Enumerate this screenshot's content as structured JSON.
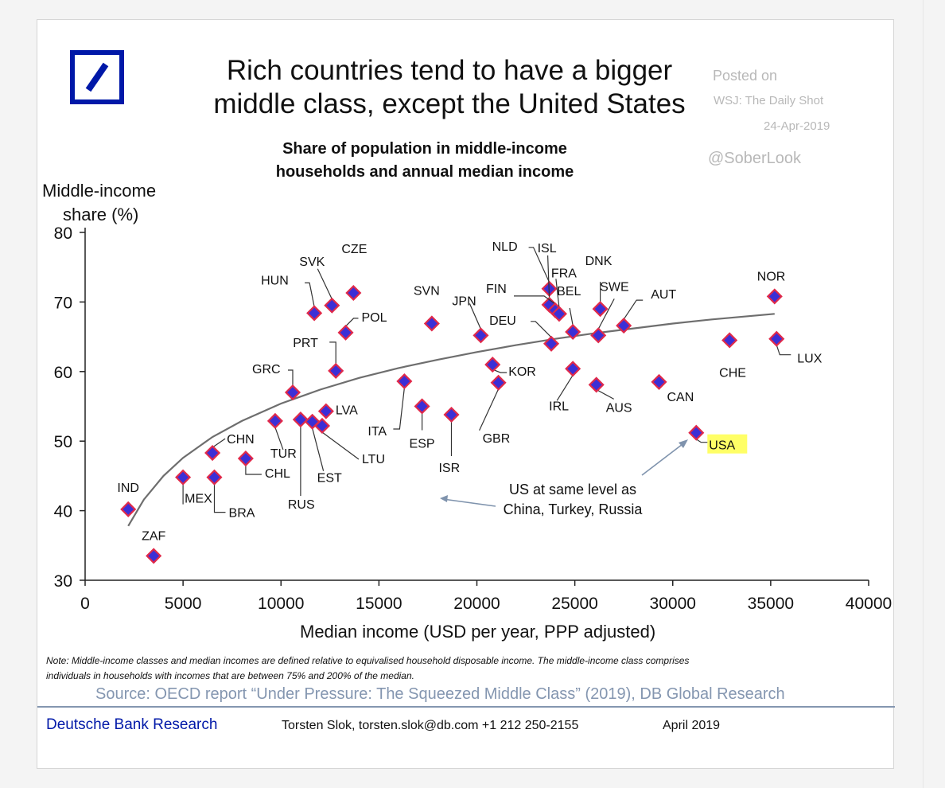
{
  "header": {
    "title_line1": "Rich countries tend to have a bigger",
    "title_line2": "middle class, except the United States",
    "posted_line1": "Posted on",
    "posted_line2": "WSJ: The Daily Shot",
    "posted_line3": "24-Apr-2019",
    "handle": "@SoberLook",
    "logo_icon": "deutsche-bank-slash-logo",
    "logo_color": "#0018a8"
  },
  "chart_data": {
    "type": "scatter",
    "title": "Share of population in middle-income households and annual median income",
    "subtitle_line1": "Share of population in middle-income",
    "subtitle_line2": "households and annual median income",
    "xlabel": "Median income (USD per year, PPP adjusted)",
    "ylabel_line1": "Middle-income",
    "ylabel_line2": "share (%)",
    "xlim": [
      0,
      40000
    ],
    "ylim": [
      30,
      80
    ],
    "x_ticks": [
      0,
      5000,
      10000,
      15000,
      20000,
      25000,
      30000,
      35000,
      40000
    ],
    "x_tick_labels": [
      "0",
      "5000",
      "10000",
      "15000",
      "20000",
      "25000",
      "30000",
      "35000",
      "40000"
    ],
    "y_ticks": [
      30,
      40,
      50,
      60,
      70,
      80
    ],
    "y_tick_labels": [
      "30",
      "40",
      "50",
      "60",
      "70",
      "80"
    ],
    "grid": false,
    "marker_fill": "#3b2fd6",
    "marker_edge": "#e0294a",
    "highlight_color": "#ffff66",
    "points": [
      {
        "label": "IND",
        "x": 2200,
        "y": 40.2
      },
      {
        "label": "ZAF",
        "x": 3500,
        "y": 33.5
      },
      {
        "label": "MEX",
        "x": 5000,
        "y": 44.8
      },
      {
        "label": "BRA",
        "x": 6600,
        "y": 44.8
      },
      {
        "label": "CHN",
        "x": 6500,
        "y": 48.3
      },
      {
        "label": "CHL",
        "x": 8200,
        "y": 47.5
      },
      {
        "label": "TUR",
        "x": 9700,
        "y": 52.9
      },
      {
        "label": "RUS",
        "x": 11000,
        "y": 53.1
      },
      {
        "label": "EST",
        "x": 11600,
        "y": 52.8
      },
      {
        "label": "LTU",
        "x": 12100,
        "y": 52.2
      },
      {
        "label": "LVA",
        "x": 12300,
        "y": 54.3
      },
      {
        "label": "GRC",
        "x": 10600,
        "y": 57.0
      },
      {
        "label": "PRT",
        "x": 12800,
        "y": 60.1
      },
      {
        "label": "POL",
        "x": 13300,
        "y": 65.6
      },
      {
        "label": "HUN",
        "x": 11700,
        "y": 68.4
      },
      {
        "label": "SVK",
        "x": 12600,
        "y": 69.5
      },
      {
        "label": "CZE",
        "x": 13700,
        "y": 71.3
      },
      {
        "label": "ITA",
        "x": 16300,
        "y": 58.6
      },
      {
        "label": "ESP",
        "x": 17200,
        "y": 55.0
      },
      {
        "label": "SVN",
        "x": 17700,
        "y": 66.9
      },
      {
        "label": "ISR",
        "x": 18700,
        "y": 53.8
      },
      {
        "label": "JPN",
        "x": 20200,
        "y": 65.2
      },
      {
        "label": "GBR",
        "x": 21100,
        "y": 58.4
      },
      {
        "label": "KOR",
        "x": 20800,
        "y": 61.0
      },
      {
        "label": "DEU",
        "x": 23800,
        "y": 64.0
      },
      {
        "label": "NLD",
        "x": 23700,
        "y": 71.9
      },
      {
        "label": "ISL",
        "x": 23700,
        "y": 69.6
      },
      {
        "label": "FIN",
        "x": 24000,
        "y": 68.8
      },
      {
        "label": "FRA",
        "x": 24200,
        "y": 68.3
      },
      {
        "label": "BEL",
        "x": 24900,
        "y": 65.7
      },
      {
        "label": "IRL",
        "x": 24900,
        "y": 60.4
      },
      {
        "label": "DNK",
        "x": 26300,
        "y": 69.0
      },
      {
        "label": "SWE",
        "x": 26200,
        "y": 65.2
      },
      {
        "label": "AUS",
        "x": 26100,
        "y": 58.1
      },
      {
        "label": "AUT",
        "x": 27500,
        "y": 66.6
      },
      {
        "label": "CAN",
        "x": 29300,
        "y": 58.5
      },
      {
        "label": "USA",
        "x": 31200,
        "y": 51.2
      },
      {
        "label": "CHE",
        "x": 32900,
        "y": 64.5
      },
      {
        "label": "NOR",
        "x": 35200,
        "y": 70.8
      },
      {
        "label": "LUX",
        "x": 35300,
        "y": 64.7
      }
    ],
    "trendline": {
      "type": "logarithmic",
      "x": [
        2200,
        3000,
        4000,
        5000,
        6500,
        8000,
        10000,
        12000,
        14000,
        16000,
        18000,
        20000,
        22000,
        24000,
        26000,
        28000,
        30000,
        32000,
        35200
      ],
      "y": [
        37.8,
        41.6,
        45.0,
        47.6,
        50.6,
        52.9,
        55.4,
        57.4,
        59.1,
        60.5,
        61.7,
        62.8,
        63.8,
        64.7,
        65.5,
        66.2,
        66.9,
        67.5,
        68.3
      ]
    },
    "annotation": {
      "text_line1": "US at same level as",
      "text_line2": "China, Turkey, Russia"
    }
  },
  "footer": {
    "note_line1": "Note: Middle-income classes and median incomes are defined relative to equivalised household disposable income. The middle-income class comprises",
    "note_line2": "individuals in households with incomes that are between 75% and 200% of the median.",
    "source": "Source: OECD report “Under Pressure: The Squeezed Middle Class” (2019), DB Global Research",
    "brand": "Deutsche Bank Research",
    "contact": "Torsten Slok, torsten.slok@db.com  +1 212 250-2155",
    "date": "April 2019"
  }
}
